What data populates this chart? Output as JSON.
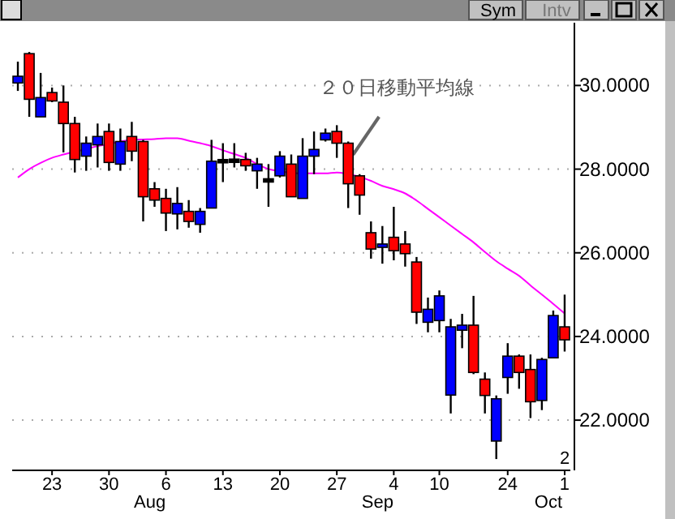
{
  "chart_data": {
    "type": "candlestick",
    "categories": [
      null,
      null,
      null,
      "23",
      null,
      null,
      null,
      null,
      "30",
      null,
      null,
      null,
      null,
      "6",
      null,
      null,
      null,
      null,
      "13",
      null,
      null,
      null,
      null,
      "20",
      null,
      null,
      null,
      null,
      "27",
      null,
      null,
      null,
      null,
      "4",
      null,
      null,
      null,
      "10",
      null,
      null,
      null,
      null,
      null,
      "24",
      null,
      null,
      null,
      null,
      "1"
    ],
    "ohlc": [
      [
        30.06,
        30.57,
        29.87,
        30.22
      ],
      [
        30.76,
        30.8,
        29.25,
        29.67
      ],
      [
        29.25,
        30.3,
        29.25,
        29.71
      ],
      [
        29.83,
        29.95,
        29.6,
        29.63
      ],
      [
        29.6,
        30.0,
        28.4,
        29.09
      ],
      [
        29.09,
        29.25,
        27.92,
        28.23
      ],
      [
        28.31,
        28.78,
        27.96,
        28.62
      ],
      [
        28.58,
        29.09,
        28.04,
        28.78
      ],
      [
        28.9,
        29.09,
        27.96,
        28.16
      ],
      [
        28.12,
        28.97,
        27.96,
        28.66
      ],
      [
        28.78,
        29.13,
        28.19,
        28.43
      ],
      [
        28.66,
        28.7,
        26.75,
        27.34
      ],
      [
        27.53,
        27.69,
        27.1,
        27.26
      ],
      [
        27.3,
        27.53,
        26.52,
        26.95
      ],
      [
        26.93,
        27.57,
        26.56,
        27.18
      ],
      [
        26.99,
        27.26,
        26.6,
        26.75
      ],
      [
        26.68,
        27.07,
        26.48,
        26.99
      ],
      [
        27.07,
        28.7,
        27.07,
        28.19
      ],
      [
        28.19,
        28.62,
        27.69,
        28.19
      ],
      [
        28.2,
        28.62,
        28.04,
        28.2
      ],
      [
        28.23,
        28.39,
        27.96,
        28.08
      ],
      [
        27.96,
        28.27,
        27.53,
        28.12
      ],
      [
        27.73,
        28.12,
        27.1,
        27.73
      ],
      [
        27.84,
        28.43,
        27.8,
        28.31
      ],
      [
        28.12,
        28.35,
        27.34,
        27.34
      ],
      [
        27.3,
        28.74,
        27.3,
        28.31
      ],
      [
        28.31,
        28.9,
        27.88,
        28.47
      ],
      [
        28.7,
        28.97,
        28.66,
        28.86
      ],
      [
        28.9,
        29.05,
        28.27,
        28.62
      ],
      [
        28.62,
        28.66,
        27.07,
        27.65
      ],
      [
        27.84,
        27.88,
        26.91,
        27.38
      ],
      [
        26.48,
        26.75,
        25.86,
        26.09
      ],
      [
        26.13,
        26.64,
        25.74,
        26.21
      ],
      [
        26.37,
        27.1,
        25.82,
        26.05
      ],
      [
        26.21,
        26.52,
        25.67,
        25.98
      ],
      [
        25.78,
        25.9,
        24.3,
        24.58
      ],
      [
        24.34,
        24.93,
        24.1,
        24.65
      ],
      [
        24.38,
        25.1,
        24.1,
        24.97
      ],
      [
        22.6,
        24.42,
        22.16,
        24.23
      ],
      [
        24.15,
        24.54,
        23.72,
        24.27
      ],
      [
        24.27,
        24.97,
        23.1,
        23.14
      ],
      [
        22.98,
        23.14,
        22.16,
        22.59
      ],
      [
        21.5,
        22.59,
        21.07,
        22.51
      ],
      [
        23.02,
        23.84,
        22.63,
        23.53
      ],
      [
        23.53,
        23.57,
        22.75,
        23.14
      ],
      [
        23.21,
        23.57,
        22.05,
        22.44
      ],
      [
        22.47,
        23.49,
        22.24,
        23.45
      ],
      [
        23.49,
        24.62,
        23.49,
        24.5
      ],
      [
        24.23,
        25.0,
        23.64,
        23.92
      ]
    ],
    "colors": [
      "#0000ff",
      "#ff0000",
      "#0000ff",
      "#ff0000",
      "#ff0000",
      "#ff0000",
      "#0000ff",
      "#0000ff",
      "#ff0000",
      "#0000ff",
      "#ff0000",
      "#ff0000",
      "#ff0000",
      "#ff0000",
      "#0000ff",
      "#ff0000",
      "#0000ff",
      "#0000ff",
      "#000000",
      "#000000",
      "#ff0000",
      "#0000ff",
      "#000000",
      "#0000ff",
      "#ff0000",
      "#0000ff",
      "#0000ff",
      "#0000ff",
      "#ff0000",
      "#ff0000",
      "#ff0000",
      "#ff0000",
      "#0000ff",
      "#ff0000",
      "#ff0000",
      "#ff0000",
      "#0000ff",
      "#0000ff",
      "#0000ff",
      "#0000ff",
      "#ff0000",
      "#ff0000",
      "#0000ff",
      "#0000ff",
      "#ff0000",
      "#ff0000",
      "#0000ff",
      "#0000ff",
      "#ff0000"
    ],
    "series": [
      {
        "type": "line",
        "name": "２０日移動平均線",
        "color": "#ff00ff",
        "values": [
          27.8,
          28.0,
          28.15,
          28.27,
          28.35,
          null,
          28.48,
          28.55,
          28.6,
          28.66,
          28.7,
          28.71,
          28.72,
          28.74,
          28.74,
          28.68,
          28.62,
          28.55,
          28.45,
          28.36,
          28.27,
          28.12,
          28.0,
          27.95,
          null,
          27.9,
          27.9,
          27.9,
          27.92,
          27.88,
          27.82,
          27.72,
          27.6,
          27.52,
          27.42,
          27.25,
          27.05,
          26.85,
          26.65,
          26.45,
          26.25,
          26.02,
          25.8,
          25.62,
          25.45,
          25.22,
          25.0,
          24.78,
          24.55
        ]
      }
    ],
    "ylim": [
      20.8,
      31.5
    ],
    "yticks": [
      {
        "value": 22,
        "label": "22.0000"
      },
      {
        "value": 24,
        "label": "24.0000"
      },
      {
        "value": 26,
        "label": "26.0000"
      },
      {
        "value": 28,
        "label": "28.0000"
      },
      {
        "value": 30,
        "label": "30.0000"
      }
    ],
    "grid": "y",
    "annotations": [
      "Sym",
      "Intv",
      "2",
      "Aug",
      "Sep",
      "Oct"
    ]
  }
}
